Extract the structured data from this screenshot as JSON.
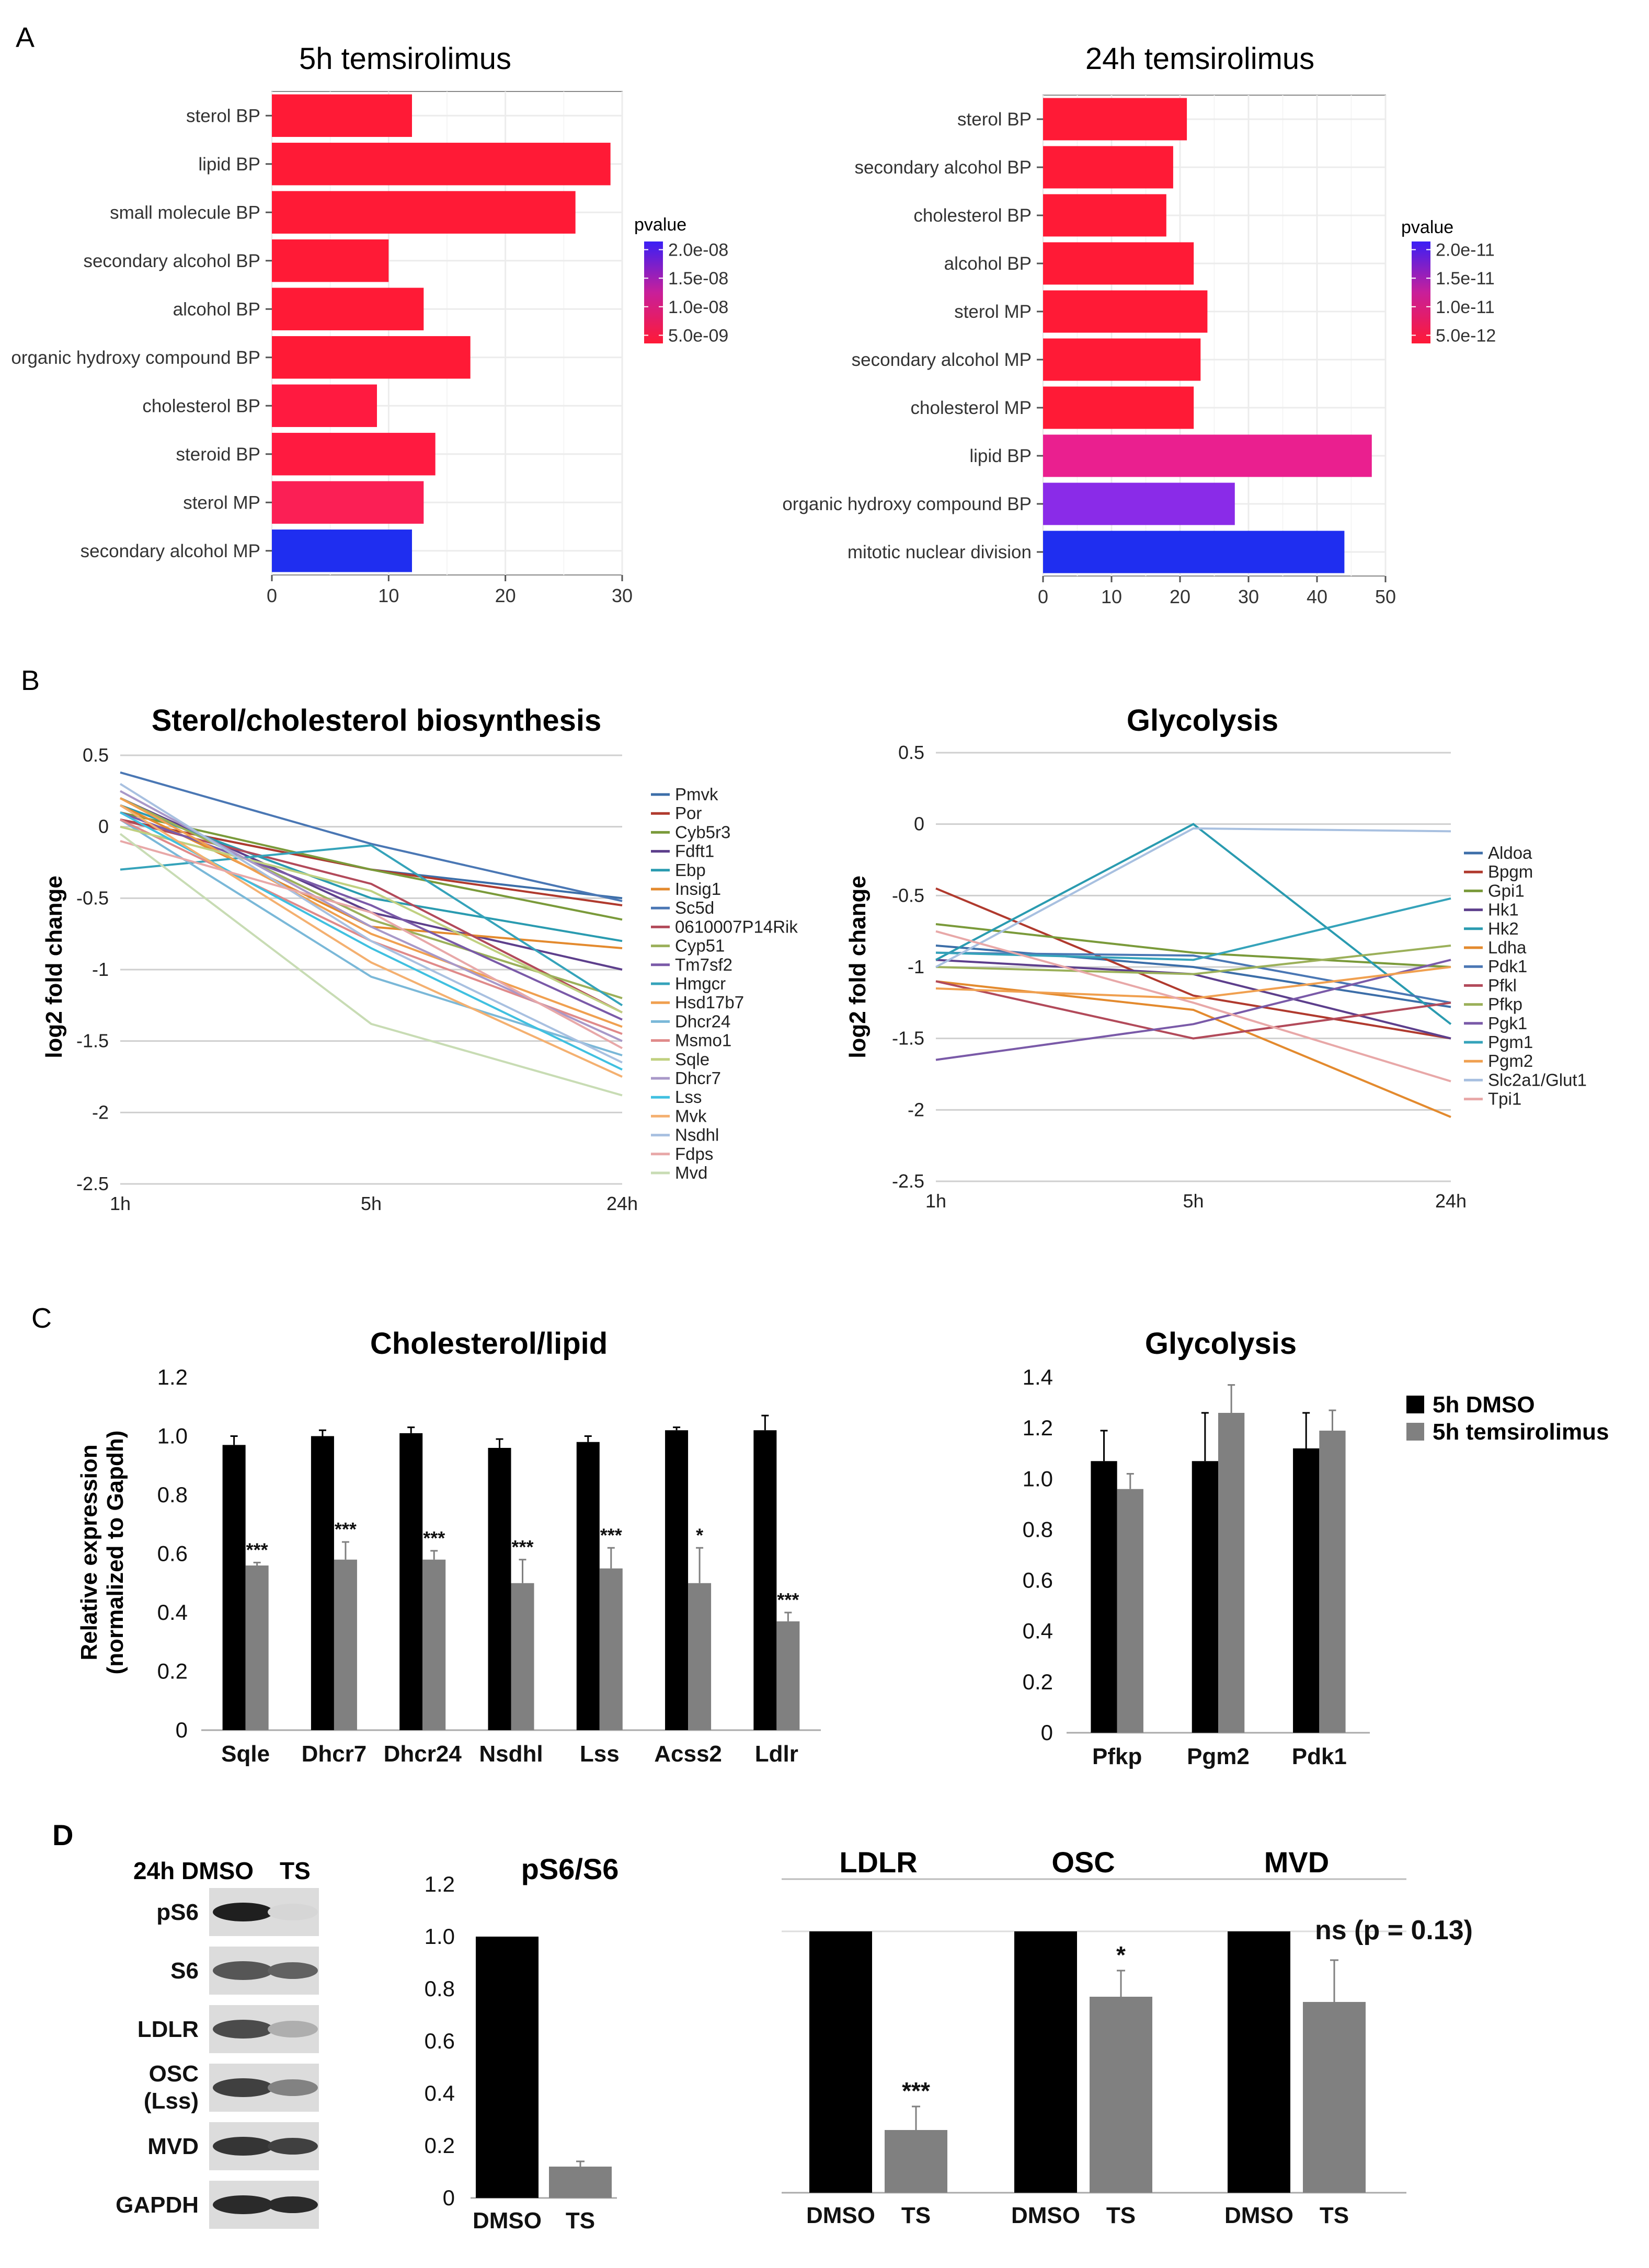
{
  "panel_letters": [
    "A",
    "B",
    "C",
    "D"
  ],
  "chart_data": [
    {
      "id": "A1",
      "type": "bar",
      "orientation": "horizontal",
      "title": "5h temsirolimus",
      "categories": [
        "sterol BP",
        "lipid BP",
        "small molecule BP",
        "secondary alcohol  BP",
        "alcohol BP",
        "organic hydroxy compound BP",
        "cholesterol BP",
        "steroid BP",
        "sterol MP",
        "secondary alcohol MP"
      ],
      "values": [
        12,
        29,
        26,
        10,
        13,
        17,
        9,
        14,
        13,
        12
      ],
      "colors": [
        "#ff1a36",
        "#ff1a36",
        "#ff1a36",
        "#ff1a36",
        "#ff1a36",
        "#ff1a36",
        "#ff1a40",
        "#ff1a40",
        "#fb1f55",
        "#1f2ef0"
      ],
      "xlim": [
        0,
        30
      ],
      "xticks": [
        0,
        10,
        20,
        30
      ],
      "legend_title": "pvalue",
      "legend_ticks": [
        "2.0e-08",
        "1.5e-08",
        "1.0e-08",
        "5.0e-09"
      ]
    },
    {
      "id": "A2",
      "type": "bar",
      "orientation": "horizontal",
      "title": "24h temsirolimus",
      "categories": [
        "sterol BP",
        "secondary alcohol BP",
        "cholesterol BP",
        "alcohol BP",
        "sterol MP",
        "secondary alcohol MP",
        "cholesterol MP",
        "lipid BP",
        "organic hydroxy compound BP",
        "mitotic nuclear division"
      ],
      "values": [
        21,
        19,
        18,
        22,
        24,
        23,
        22,
        48,
        28,
        44
      ],
      "colors": [
        "#ff1a36",
        "#ff1a36",
        "#ff1a36",
        "#ff1a36",
        "#ff1a36",
        "#ff1a36",
        "#ff1a36",
        "#ea1f8f",
        "#8a2be8",
        "#1f2ef0"
      ],
      "xlim": [
        0,
        50
      ],
      "xticks": [
        0,
        10,
        20,
        30,
        40,
        50
      ],
      "legend_title": "pvalue",
      "legend_ticks": [
        "2.0e-11",
        "1.5e-11",
        "1.0e-11",
        "5.0e-12"
      ]
    },
    {
      "id": "B1",
      "type": "line",
      "title": "Sterol/cholesterol biosynthesis",
      "ylabel": "log2 fold change",
      "x": [
        "1h",
        "5h",
        "24h"
      ],
      "ylim": [
        -2.5,
        0.5
      ],
      "yticks": [
        0.5,
        0,
        -0.5,
        -1,
        -1.5,
        -2,
        -2.5
      ],
      "series": [
        {
          "name": "Pmvk",
          "values": [
            0.05,
            -0.3,
            -0.5
          ],
          "color": "#3c6ea8"
        },
        {
          "name": "Por",
          "values": [
            0.05,
            -0.3,
            -0.55
          ],
          "color": "#b03a2e"
        },
        {
          "name": "Cyb5r3",
          "values": [
            0.1,
            -0.3,
            -0.65
          ],
          "color": "#7a9a3a"
        },
        {
          "name": "Fdft1",
          "values": [
            0.2,
            -0.6,
            -1.0
          ],
          "color": "#5d3f8c"
        },
        {
          "name": "Ebp",
          "values": [
            0.15,
            -0.5,
            -0.8
          ],
          "color": "#2a9bb0"
        },
        {
          "name": "Insig1",
          "values": [
            0.15,
            -0.7,
            -0.85
          ],
          "color": "#e38a2e"
        },
        {
          "name": "Sc5d",
          "values": [
            0.38,
            -0.12,
            -0.52
          ],
          "color": "#4a77b4"
        },
        {
          "name": "0610007P14Rik",
          "values": [
            0.05,
            -0.4,
            -1.3
          ],
          "color": "#b24a5a"
        },
        {
          "name": "Cyp51",
          "values": [
            0.2,
            -0.65,
            -1.2
          ],
          "color": "#9bb05a"
        },
        {
          "name": "Tm7sf2",
          "values": [
            0.1,
            -0.55,
            -1.35
          ],
          "color": "#7a5aa8"
        },
        {
          "name": "Hmgcr",
          "values": [
            -0.3,
            -0.13,
            -1.25
          ],
          "color": "#35a3ba"
        },
        {
          "name": "Hsd17b7",
          "values": [
            0.2,
            -0.75,
            -1.4
          ],
          "color": "#f0a050"
        },
        {
          "name": "Dhcr24",
          "values": [
            0.05,
            -1.05,
            -1.6
          ],
          "color": "#7ab8d8"
        },
        {
          "name": "Msmo1",
          "values": [
            0.05,
            -0.8,
            -1.45
          ],
          "color": "#e08a8a"
        },
        {
          "name": "Sqle",
          "values": [
            0.0,
            -0.45,
            -1.3
          ],
          "color": "#c0d080"
        },
        {
          "name": "Dhcr7",
          "values": [
            0.25,
            -0.7,
            -1.5
          ],
          "color": "#a898c8"
        },
        {
          "name": "Lss",
          "values": [
            0.1,
            -0.85,
            -1.7
          ],
          "color": "#40c0e0"
        },
        {
          "name": "Mvk",
          "values": [
            0.15,
            -0.95,
            -1.75
          ],
          "color": "#f4b070"
        },
        {
          "name": "Nsdhl",
          "values": [
            0.3,
            -0.8,
            -1.65
          ],
          "color": "#a8c0e0"
        },
        {
          "name": "Fdps",
          "values": [
            -0.1,
            -0.6,
            -1.55
          ],
          "color": "#e8a8a8"
        },
        {
          "name": "Mvd",
          "values": [
            -0.05,
            -1.38,
            -1.88
          ],
          "color": "#c8dcb4"
        }
      ]
    },
    {
      "id": "B2",
      "type": "line",
      "title": "Glycolysis",
      "ylabel": "log2 fold change",
      "x": [
        "1h",
        "5h",
        "24h"
      ],
      "ylim": [
        -2.5,
        0.5
      ],
      "yticks": [
        0.5,
        0,
        -0.5,
        -1,
        -1.5,
        -2,
        -2.5
      ],
      "series": [
        {
          "name": "Aldoa",
          "values": [
            -0.85,
            -1.0,
            -1.28
          ],
          "color": "#3c6ea8"
        },
        {
          "name": "Bpgm",
          "values": [
            -0.45,
            -1.2,
            -1.5
          ],
          "color": "#b03a2e"
        },
        {
          "name": "Gpi1",
          "values": [
            -0.7,
            -0.9,
            -1.0
          ],
          "color": "#7a9a3a"
        },
        {
          "name": "Hk1",
          "values": [
            -0.95,
            -1.05,
            -1.5
          ],
          "color": "#5d3f8c"
        },
        {
          "name": "Hk2",
          "values": [
            -0.95,
            0.0,
            -1.4
          ],
          "color": "#2a9bb0"
        },
        {
          "name": "Ldha",
          "values": [
            -1.1,
            -1.3,
            -2.05
          ],
          "color": "#e38a2e"
        },
        {
          "name": "Pdk1",
          "values": [
            -0.9,
            -0.92,
            -1.25
          ],
          "color": "#4a77b4"
        },
        {
          "name": "Pfkl",
          "values": [
            -1.1,
            -1.5,
            -1.25
          ],
          "color": "#b24a5a"
        },
        {
          "name": "Pfkp",
          "values": [
            -1.0,
            -1.05,
            -0.85
          ],
          "color": "#9bb05a"
        },
        {
          "name": "Pgk1",
          "values": [
            -1.65,
            -1.4,
            -0.95
          ],
          "color": "#7a5aa8"
        },
        {
          "name": "Pgm1",
          "values": [
            -0.9,
            -0.95,
            -0.52
          ],
          "color": "#35a3ba"
        },
        {
          "name": "Pgm2",
          "values": [
            -1.15,
            -1.22,
            -1.0
          ],
          "color": "#f0a050"
        },
        {
          "name": "Slc2a1/Glut1",
          "values": [
            -1.0,
            -0.03,
            -0.05
          ],
          "color": "#a8c0e0"
        },
        {
          "name": "Tpi1",
          "values": [
            -0.75,
            -1.25,
            -1.8
          ],
          "color": "#e8a8a8"
        }
      ]
    },
    {
      "id": "C1",
      "type": "bar",
      "title": "Cholesterol/lipid",
      "ylabel_lines": [
        "Relative expression",
        "(normalized to Gapdh)"
      ],
      "categories": [
        "Sqle",
        "Dhcr7",
        "Dhcr24",
        "Nsdhl",
        "Lss",
        "Acss2",
        "Ldlr"
      ],
      "ylim": [
        0,
        1.2
      ],
      "yticks": [
        "0",
        "0.2",
        "0.4",
        "0.6",
        "0.8",
        "1.0",
        "1.2"
      ],
      "series": [
        {
          "name": "5h DMSO",
          "color": "#000000",
          "values": [
            0.97,
            1.0,
            1.01,
            0.96,
            0.98,
            1.02,
            1.02
          ],
          "errors": [
            0.03,
            0.02,
            0.02,
            0.03,
            0.02,
            0.01,
            0.05
          ]
        },
        {
          "name": "5h temsirolimus",
          "color": "#808080",
          "values": [
            0.56,
            0.58,
            0.58,
            0.5,
            0.55,
            0.5,
            0.37
          ],
          "errors": [
            0.01,
            0.06,
            0.03,
            0.08,
            0.07,
            0.12,
            0.03
          ],
          "annotations": [
            "***",
            "***",
            "***",
            "***",
            "***",
            "*",
            "***"
          ]
        }
      ]
    },
    {
      "id": "C2",
      "type": "bar",
      "title": "Glycolysis",
      "categories": [
        "Pfkp",
        "Pgm2",
        "Pdk1"
      ],
      "ylim": [
        0,
        1.4
      ],
      "yticks": [
        "0",
        "0.2",
        "0.4",
        "0.6",
        "0.8",
        "1.0",
        "1.2",
        "1.4"
      ],
      "legend": [
        "5h DMSO",
        "5h temsirolimus"
      ],
      "series": [
        {
          "name": "5h DMSO",
          "color": "#000000",
          "values": [
            1.07,
            1.07,
            1.12
          ],
          "errors": [
            0.12,
            0.19,
            0.14
          ]
        },
        {
          "name": "5h temsirolimus",
          "color": "#808080",
          "values": [
            0.96,
            1.26,
            1.19
          ],
          "errors": [
            0.06,
            0.11,
            0.08
          ]
        }
      ]
    },
    {
      "id": "D1",
      "type": "bar",
      "title": "pS6/S6",
      "categories": [
        "DMSO",
        "TS"
      ],
      "values": [
        1.0,
        0.12
      ],
      "errors": [
        0.0,
        0.02
      ],
      "colors": [
        "#000000",
        "#808080"
      ],
      "ylim": [
        0,
        1.2
      ],
      "yticks": [
        "0",
        "0.2",
        "0.4",
        "0.6",
        "0.8",
        "1.0",
        "1.2"
      ]
    },
    {
      "id": "D2",
      "type": "bar",
      "groups": [
        {
          "title": "LDLR",
          "categories": [
            "DMSO",
            "TS"
          ],
          "values": [
            1.0,
            0.24
          ],
          "errors": [
            0.0,
            0.09
          ],
          "annotation": "***"
        },
        {
          "title": "OSC",
          "categories": [
            "DMSO",
            "TS"
          ],
          "values": [
            1.0,
            0.75
          ],
          "errors": [
            0.0,
            0.1
          ],
          "annotation": "*"
        },
        {
          "title": "MVD",
          "categories": [
            "DMSO",
            "TS"
          ],
          "values": [
            1.0,
            0.73
          ],
          "errors": [
            0.0,
            0.16
          ],
          "annotation": "ns (p = 0.13)"
        }
      ],
      "colors": [
        "#000000",
        "#808080"
      ],
      "ylim": [
        0,
        1.2
      ]
    }
  ],
  "blot": {
    "header": "24h DMSO",
    "header_ts": "TS",
    "rows": [
      {
        "label": "pS6",
        "dmso": 0.95,
        "ts": 0.12
      },
      {
        "label": "S6",
        "dmso": 0.7,
        "ts": 0.65
      },
      {
        "label": "LDLR",
        "dmso": 0.75,
        "ts": 0.3
      },
      {
        "label": "OSC\n(Lss)",
        "dmso": 0.8,
        "ts": 0.5
      },
      {
        "label": "MVD",
        "dmso": 0.85,
        "ts": 0.8
      },
      {
        "label": "GAPDH",
        "dmso": 0.9,
        "ts": 0.9
      }
    ]
  }
}
